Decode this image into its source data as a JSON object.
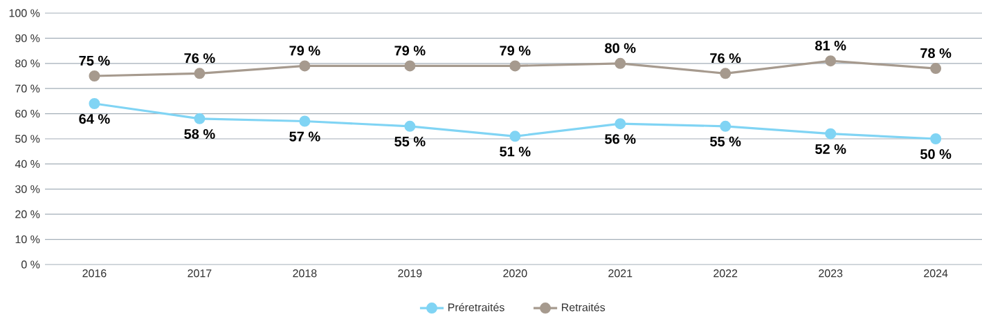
{
  "chart_data": {
    "type": "line",
    "categories": [
      "2016",
      "2017",
      "2018",
      "2019",
      "2020",
      "2021",
      "2022",
      "2023",
      "2024"
    ],
    "series": [
      {
        "name": "Préretraités",
        "color": "#80d4f4",
        "values": [
          64,
          58,
          57,
          55,
          51,
          56,
          55,
          52,
          50
        ],
        "value_labels": [
          "64 %",
          "58 %",
          "57 %",
          "55 %",
          "51 %",
          "56 %",
          "55 %",
          "52 %",
          "50 %"
        ]
      },
      {
        "name": "Retraités",
        "color": "#a69a8e",
        "values": [
          75,
          76,
          79,
          79,
          79,
          80,
          76,
          81,
          78
        ],
        "value_labels": [
          "75 %",
          "76 %",
          "79 %",
          "79 %",
          "79 %",
          "80 %",
          "76 %",
          "81 %",
          "78 %"
        ]
      }
    ],
    "ylim": [
      0,
      100
    ],
    "yticks": [
      {
        "value": 0,
        "label": "0 %"
      },
      {
        "value": 10,
        "label": "10 %"
      },
      {
        "value": 20,
        "label": "20 %"
      },
      {
        "value": 30,
        "label": "30 %"
      },
      {
        "value": 40,
        "label": "40 %"
      },
      {
        "value": 50,
        "label": "50 %"
      },
      {
        "value": 60,
        "label": "60 %"
      },
      {
        "value": 70,
        "label": "70 %"
      },
      {
        "value": 80,
        "label": "80 %"
      },
      {
        "value": 90,
        "label": "90 %"
      },
      {
        "value": 100,
        "label": "100 %"
      }
    ],
    "grid": "y",
    "legend": "bottom",
    "marker": "circle",
    "line_style": "solid"
  }
}
